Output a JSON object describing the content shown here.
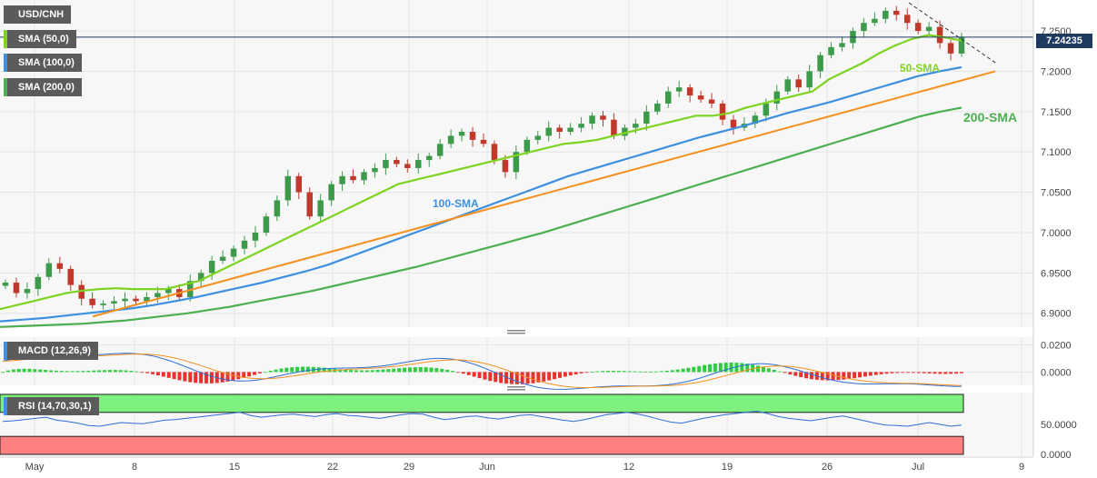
{
  "chart_data": [
    {
      "type": "line",
      "symbol": "USD/CNH",
      "indicators": [
        {
          "name": "SMA (50,0)",
          "color": "#7ed321"
        },
        {
          "name": "SMA (100,0)",
          "color": "#3d8fe0"
        },
        {
          "name": "SMA (200,0)",
          "color": "#4caf50"
        }
      ],
      "last_price": "7.24235",
      "y_ticks": [
        "7.2500",
        "7.2000",
        "7.1500",
        "7.1000",
        "7.0500",
        "7.0000",
        "6.9500",
        "6.9000"
      ],
      "ylim": [
        6.885,
        7.285
      ],
      "x_ticks": [
        "May",
        "8",
        "15",
        "22",
        "29",
        "Jun",
        "12",
        "19",
        "26",
        "Jul",
        "9"
      ],
      "annotations": [
        "50-SMA",
        "100-SMA",
        "200-SMA"
      ],
      "series": {
        "price_close": [
          6.938,
          6.925,
          6.93,
          6.945,
          6.962,
          6.955,
          6.935,
          6.918,
          6.91,
          6.912,
          6.915,
          6.918,
          6.915,
          6.92,
          6.925,
          6.93,
          6.92,
          6.94,
          6.95,
          6.965,
          6.97,
          6.98,
          6.99,
          7.0,
          7.02,
          7.04,
          7.07,
          7.05,
          7.02,
          7.04,
          7.06,
          7.07,
          7.065,
          7.075,
          7.08,
          7.09,
          7.085,
          7.08,
          7.09,
          7.095,
          7.11,
          7.12,
          7.125,
          7.115,
          7.11,
          7.09,
          7.075,
          7.1,
          7.115,
          7.12,
          7.13,
          7.125,
          7.13,
          7.135,
          7.145,
          7.14,
          7.12,
          7.13,
          7.135,
          7.15,
          7.16,
          7.175,
          7.18,
          7.17,
          7.165,
          7.16,
          7.14,
          7.13,
          7.135,
          7.145,
          7.16,
          7.175,
          7.19,
          7.18,
          7.2,
          7.22,
          7.23,
          7.235,
          7.25,
          7.26,
          7.265,
          7.275,
          7.27,
          7.26,
          7.25,
          7.255,
          7.235,
          7.222,
          7.242
        ],
        "sma50": [
          6.905,
          6.91,
          6.915,
          6.92,
          6.925,
          6.928,
          6.93,
          6.931,
          6.93,
          6.93,
          6.93,
          6.935,
          6.94,
          6.95,
          6.96,
          6.97,
          6.98,
          6.99,
          7.0,
          7.01,
          7.02,
          7.03,
          7.04,
          7.05,
          7.06,
          7.065,
          7.07,
          7.075,
          7.08,
          7.085,
          7.09,
          7.095,
          7.1,
          7.105,
          7.11,
          7.112,
          7.115,
          7.12,
          7.125,
          7.13,
          7.135,
          7.14,
          7.145,
          7.145,
          7.148,
          7.155,
          7.16,
          7.165,
          7.17,
          7.175,
          7.19,
          7.2,
          7.21,
          7.222,
          7.232,
          7.24,
          7.245,
          7.242,
          7.238
        ],
        "sma100": [
          6.89,
          6.892,
          6.894,
          6.897,
          6.9,
          6.903,
          6.906,
          6.91,
          6.915,
          6.92,
          6.926,
          6.932,
          6.938,
          6.945,
          6.952,
          6.96,
          6.97,
          6.98,
          6.99,
          7.0,
          7.01,
          7.02,
          7.03,
          7.04,
          7.05,
          7.06,
          7.07,
          7.078,
          7.086,
          7.094,
          7.102,
          7.11,
          7.118,
          7.125,
          7.132,
          7.14,
          7.148,
          7.155,
          7.162,
          7.17,
          7.178,
          7.186,
          7.194,
          7.2,
          7.205
        ],
        "sma200": [
          6.883,
          6.884,
          6.885,
          6.886,
          6.887,
          6.889,
          6.891,
          6.894,
          6.897,
          6.9,
          6.904,
          6.908,
          6.913,
          6.918,
          6.923,
          6.928,
          6.934,
          6.94,
          6.946,
          6.952,
          6.958,
          6.965,
          6.972,
          6.979,
          6.986,
          6.993,
          7.0,
          7.008,
          7.016,
          7.024,
          7.032,
          7.04,
          7.048,
          7.056,
          7.064,
          7.072,
          7.08,
          7.088,
          7.096,
          7.104,
          7.112,
          7.12,
          7.128,
          7.136,
          7.144,
          7.15,
          7.155
        ],
        "trendline_support": [
          {
            "x": "May 3",
            "y": 6.896
          },
          {
            "x": "Jul 6",
            "y": 7.2
          }
        ],
        "trendline_resistance": [
          {
            "x": "Jun 30",
            "y": 7.285
          },
          {
            "x": "Jul 6",
            "y": 7.21
          }
        ]
      }
    },
    {
      "type": "line",
      "name": "MACD (12,26,9)",
      "y_ticks": [
        "0.0200",
        "0.0000"
      ],
      "ylim": [
        -0.0085,
        0.0245
      ]
    },
    {
      "type": "line",
      "name": "RSI (14,70,30,1)",
      "y_ticks": [
        "50.0000",
        "0.0000"
      ],
      "ylim": [
        0,
        100
      ],
      "overbought": 70,
      "oversold": 30,
      "values": [
        55,
        56,
        58,
        60,
        62,
        57,
        55,
        52,
        48,
        47,
        50,
        53,
        52,
        51,
        54,
        57,
        58,
        60,
        62,
        64,
        66,
        68,
        70,
        65,
        62,
        64,
        66,
        67,
        65,
        63,
        66,
        68,
        65,
        64,
        62,
        60,
        63,
        66,
        68,
        67,
        62,
        58,
        60,
        63,
        64,
        61,
        59,
        62,
        65,
        66,
        63,
        60,
        57,
        55,
        58,
        62,
        66,
        68,
        70,
        67,
        63,
        58,
        54,
        52,
        56,
        60,
        63,
        66,
        68,
        70,
        72,
        68,
        63,
        60,
        58,
        56,
        59,
        62,
        64,
        60,
        56,
        52,
        49,
        48,
        47,
        50,
        53,
        50,
        47,
        49
      ]
    }
  ]
}
